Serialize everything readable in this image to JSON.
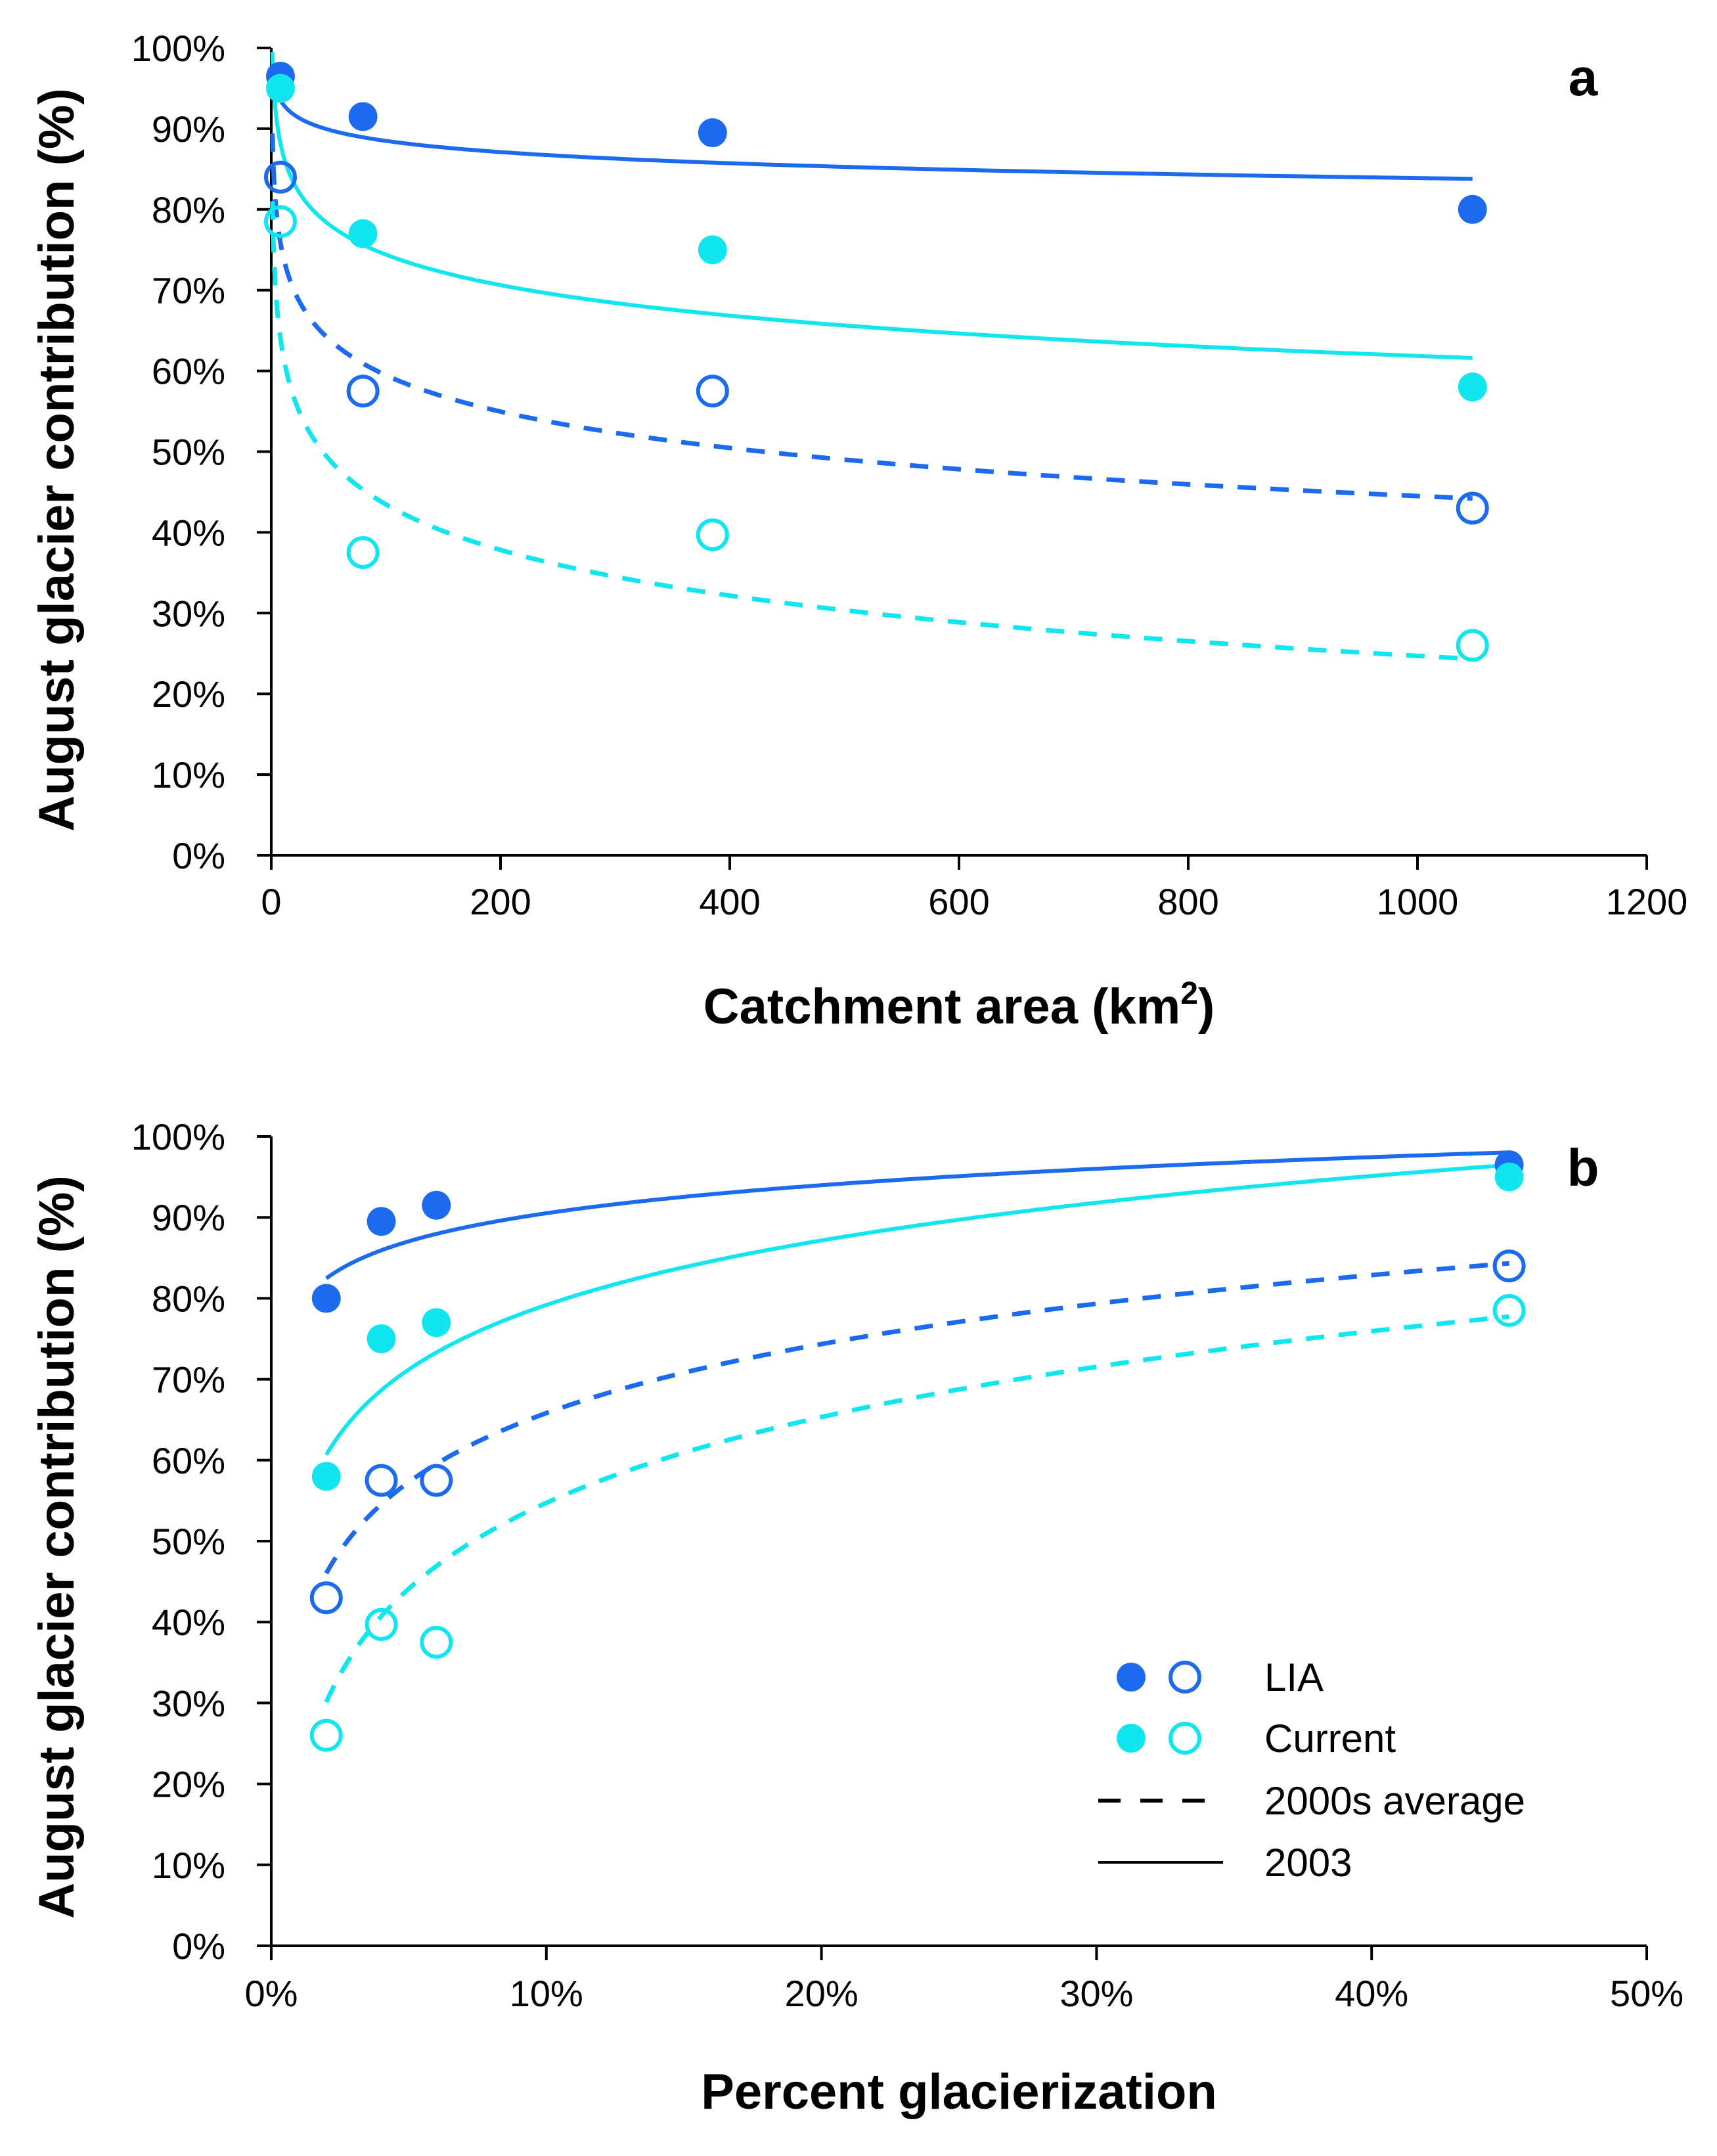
{
  "colors": {
    "lia": "#1C6BEE",
    "current": "#11E6EE",
    "axis": "#000000"
  },
  "legend": {
    "lia_label": "LIA",
    "current_label": "Current",
    "avg_label": "2000s average",
    "y2003_label": "2003"
  },
  "chart_data": [
    {
      "type": "scatter",
      "panel": "a",
      "xlabel_main": "Catchment area (km",
      "xlabel_sup": "2",
      "xlabel_end": ")",
      "ylabel": "August glacier contribution (%)",
      "xlim": [
        0,
        1200
      ],
      "ylim": [
        0,
        100
      ],
      "x_ticks": [
        0,
        200,
        400,
        600,
        800,
        1000,
        1200
      ],
      "x_tick_labels": [
        "0",
        "200",
        "400",
        "600",
        "800",
        "1000",
        "1200"
      ],
      "y_ticks": [
        0,
        10,
        20,
        30,
        40,
        50,
        60,
        70,
        80,
        90,
        100
      ],
      "y_tick_labels": [
        "0%",
        "10%",
        "20%",
        "30%",
        "40%",
        "50%",
        "60%",
        "70%",
        "80%",
        "90%",
        "100%"
      ],
      "series": [
        {
          "name": "LIA 2003",
          "group": "lia",
          "style": "solid",
          "x": [
            8,
            80,
            385,
            1048
          ],
          "y": [
            96.5,
            91.5,
            89.5,
            80.0
          ]
        },
        {
          "name": "Current 2003",
          "group": "current",
          "style": "solid",
          "x": [
            8,
            80,
            385,
            1048
          ],
          "y": [
            95.0,
            77.0,
            75.0,
            58.0
          ]
        },
        {
          "name": "LIA 2000s average",
          "group": "lia",
          "style": "dashed",
          "x": [
            8,
            80,
            385,
            1048
          ],
          "y": [
            84.0,
            57.5,
            57.5,
            43.0
          ]
        },
        {
          "name": "Current 2000s average",
          "group": "current",
          "style": "dashed",
          "x": [
            8,
            80,
            385,
            1048
          ],
          "y": [
            78.5,
            37.5,
            39.7,
            26.0
          ]
        }
      ],
      "trendlines": [
        {
          "group": "lia",
          "style": "solid",
          "a": 97.7,
          "b": 2.0,
          "x_from": 1,
          "x_to": 1048
        },
        {
          "group": "current",
          "style": "solid",
          "a": 99.5,
          "b": 5.45,
          "x_from": 1,
          "x_to": 1048
        },
        {
          "group": "lia",
          "style": "dashed",
          "a": 89.4,
          "b": 6.5,
          "x_from": 1,
          "x_to": 1048
        },
        {
          "group": "current",
          "style": "dashed",
          "a": 81.0,
          "b": 8.15,
          "x_from": 1,
          "x_to": 1048
        }
      ]
    },
    {
      "type": "scatter",
      "panel": "b",
      "xlabel": "Percent glacierization",
      "ylabel": "August glacier contribution (%)",
      "xlim": [
        0,
        50
      ],
      "ylim": [
        0,
        100
      ],
      "x_ticks": [
        0,
        10,
        20,
        30,
        40,
        50
      ],
      "x_tick_labels": [
        "0%",
        "10%",
        "20%",
        "30%",
        "40%",
        "50%"
      ],
      "y_ticks": [
        0,
        10,
        20,
        30,
        40,
        50,
        60,
        70,
        80,
        90,
        100
      ],
      "y_tick_labels": [
        "0%",
        "10%",
        "20%",
        "30%",
        "40%",
        "50%",
        "60%",
        "70%",
        "80%",
        "90%",
        "100%"
      ],
      "series": [
        {
          "name": "LIA 2003",
          "group": "lia",
          "style": "solid",
          "x": [
            2,
            4,
            6,
            45
          ],
          "y": [
            80.0,
            89.5,
            91.5,
            96.5
          ]
        },
        {
          "name": "Current 2003",
          "group": "current",
          "style": "solid",
          "x": [
            2,
            4,
            6,
            45
          ],
          "y": [
            58.0,
            75.0,
            77.0,
            95.0
          ]
        },
        {
          "name": "LIA 2000s average",
          "group": "lia",
          "style": "dashed",
          "x": [
            2,
            4,
            6,
            45
          ],
          "y": [
            43.0,
            57.5,
            57.5,
            84.0
          ]
        },
        {
          "name": "Current 2000s average",
          "group": "current",
          "style": "dashed",
          "x": [
            2,
            4,
            6,
            45
          ],
          "y": [
            26.0,
            39.7,
            37.5,
            78.5
          ]
        }
      ],
      "trendlines": [
        {
          "group": "lia",
          "style": "solid",
          "a": 79.0,
          "b": 5.0,
          "x_from": 2,
          "x_to": 45
        },
        {
          "group": "current",
          "style": "solid",
          "a": 52.7,
          "b": 11.5,
          "x_from": 2,
          "x_to": 45
        },
        {
          "group": "lia",
          "style": "dashed",
          "a": 37.5,
          "b": 12.3,
          "x_from": 2,
          "x_to": 45
        },
        {
          "group": "current",
          "style": "dashed",
          "a": 19.5,
          "b": 15.3,
          "x_from": 2,
          "x_to": 45
        }
      ]
    }
  ]
}
